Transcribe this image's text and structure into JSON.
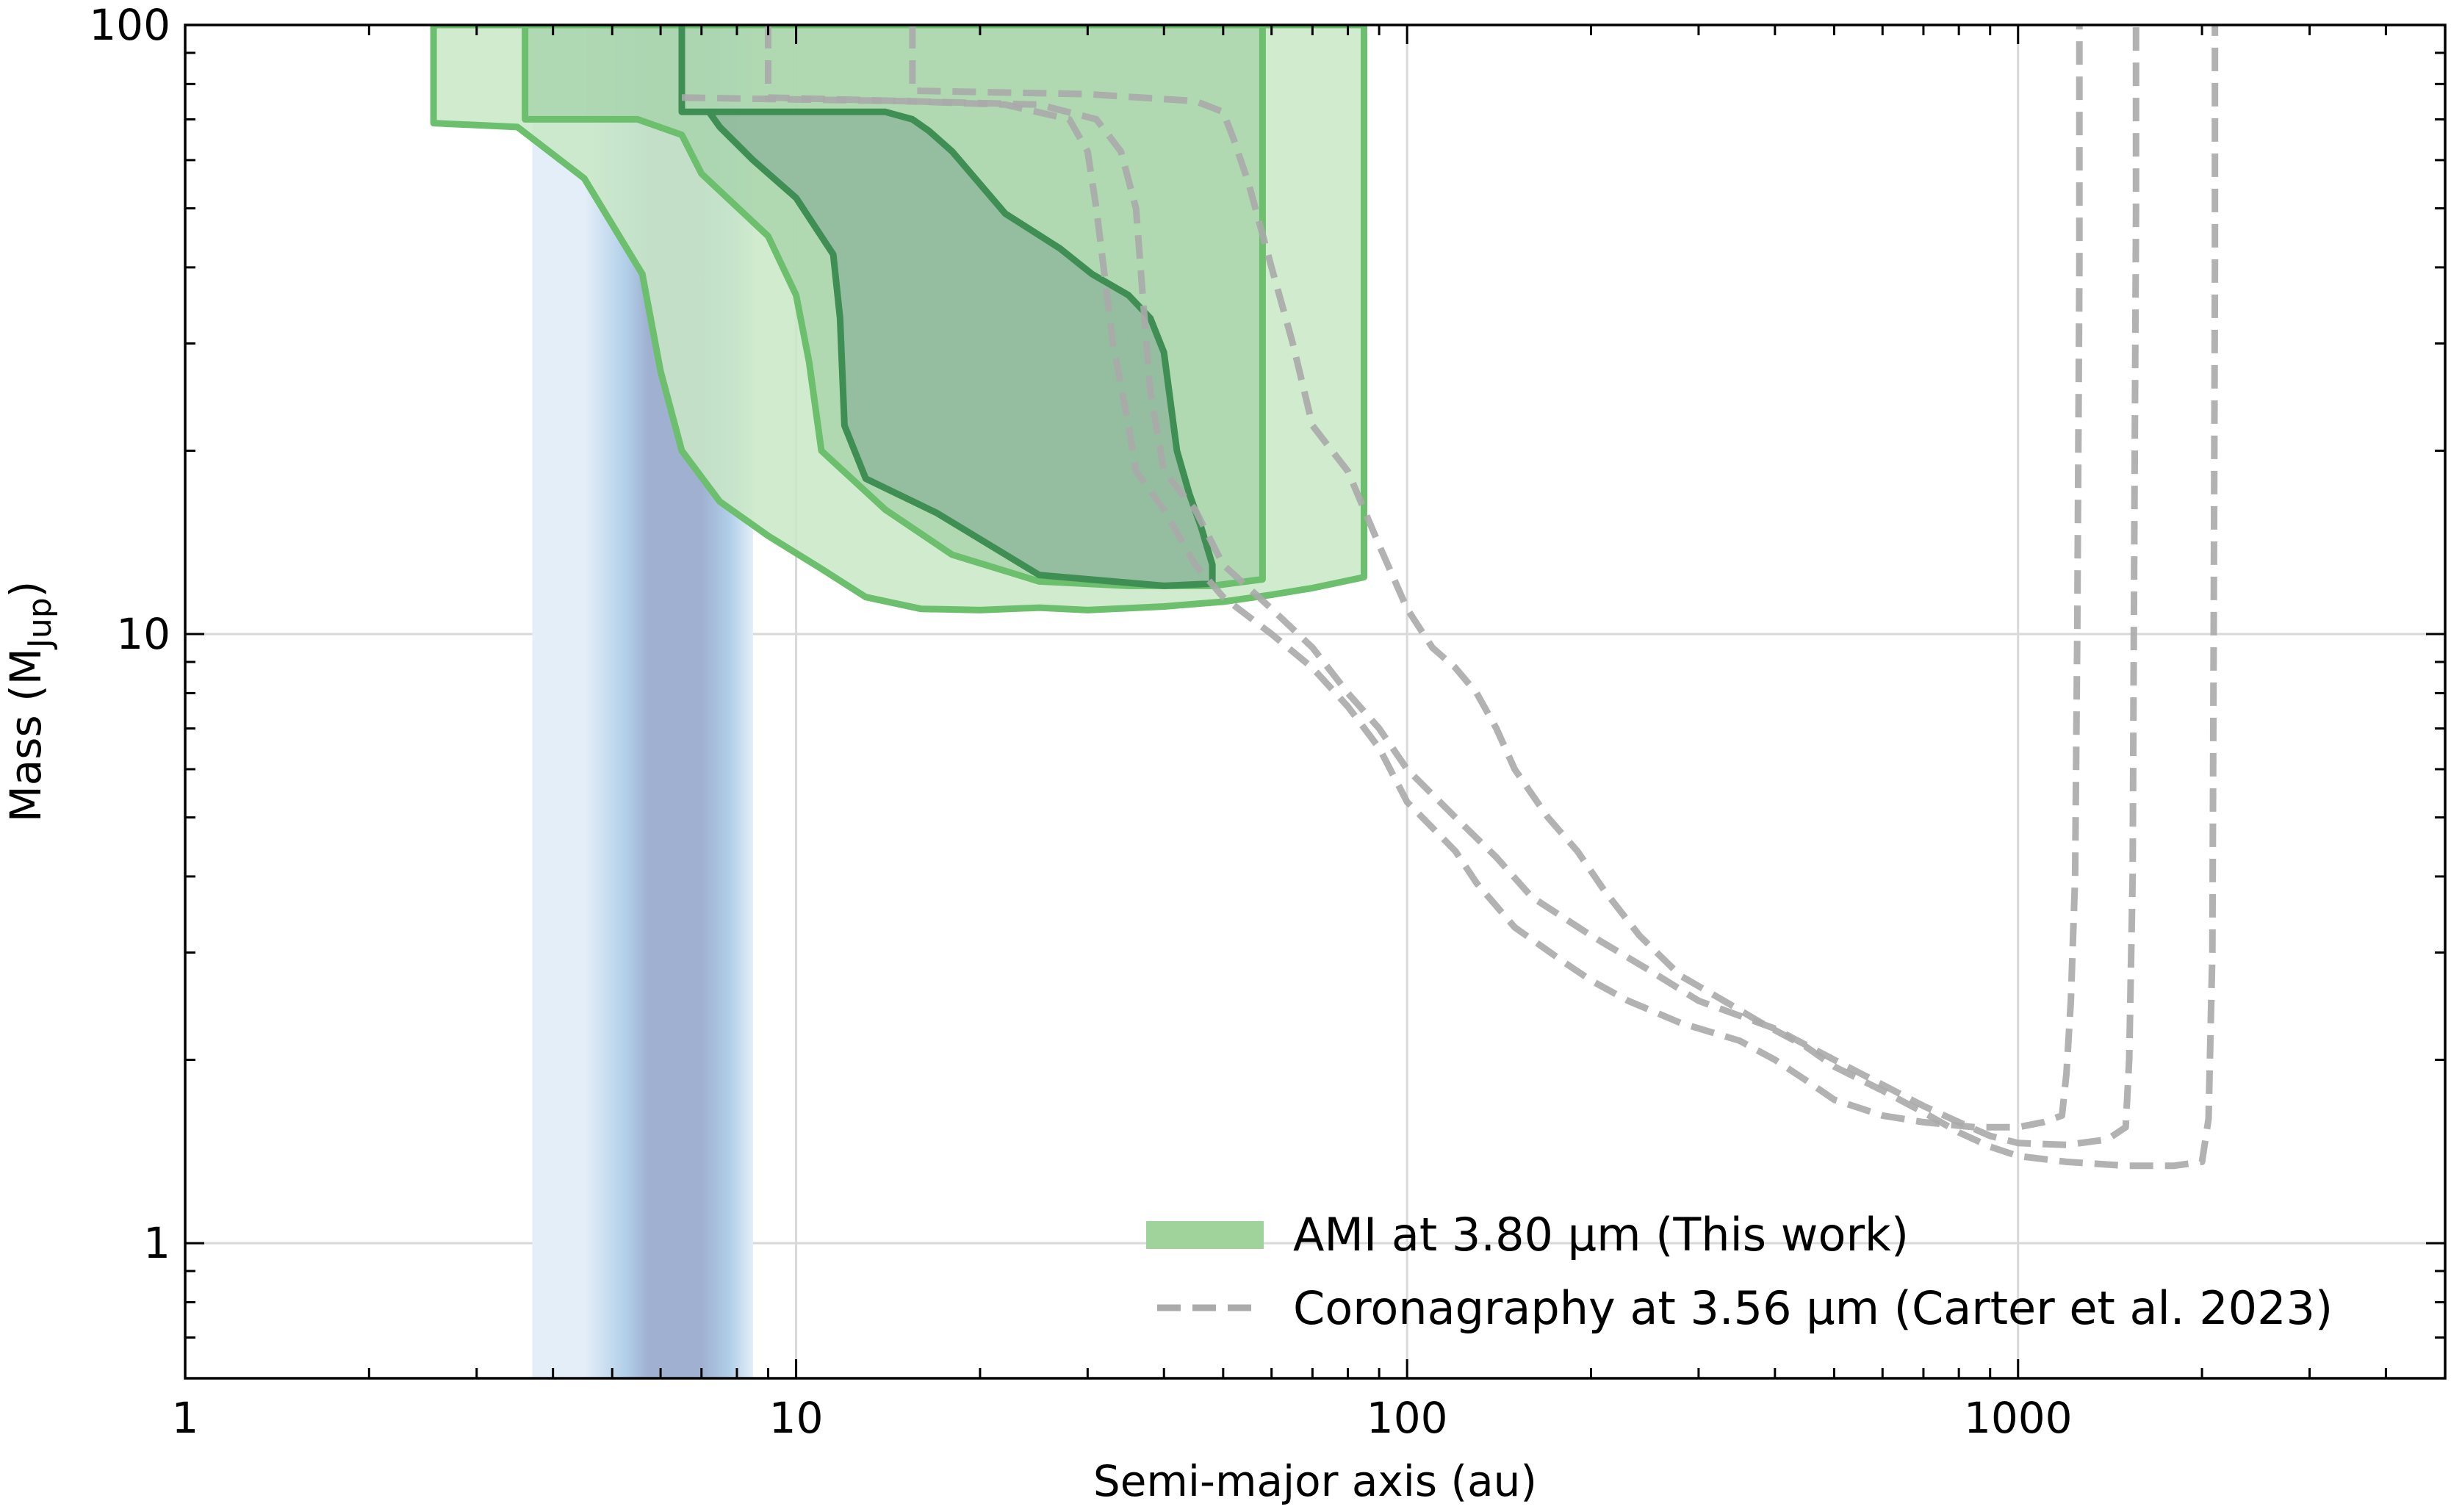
{
  "chart_data": {
    "type": "area",
    "xscale": "log",
    "yscale": "log",
    "xlim": [
      1,
      5000
    ],
    "ylim": [
      0.6,
      100
    ],
    "xlabel": "Semi-major axis (au)",
    "ylabel_main": "Mass (M",
    "ylabel_sub": "Jup",
    "ylabel_end": ")",
    "grid": true,
    "legend_position": "lower-right",
    "x_ticks": [
      {
        "value": 1,
        "label": "1"
      },
      {
        "value": 10,
        "label": "10"
      },
      {
        "value": 100,
        "label": "100"
      },
      {
        "value": 1000,
        "label": "1000"
      }
    ],
    "y_ticks": [
      {
        "value": 1,
        "label": "1"
      },
      {
        "value": 10,
        "label": "10"
      },
      {
        "value": 100,
        "label": "100"
      }
    ],
    "band": {
      "x_range": [
        3.7,
        8.5
      ],
      "peak": [
        5.5,
        7.0
      ],
      "edge_color": "#e4eef8",
      "mid_color": "#b1cfe9",
      "core_color": "#9fb0d0"
    },
    "colors": {
      "ami_outer_fill": "#c9e8c6",
      "ami_mid_fill": "#a3d1a6",
      "ami_inner_fill": "#8cb499",
      "ami_edge": "#6cbf6c",
      "ami_edge_dark": "#3f8f55",
      "corona": "#aaaaaa",
      "grid": "#d9d9d9",
      "legend_patch": "#9fd39b"
    },
    "ami_contours": [
      {
        "level": "outer",
        "points": [
          [
            2.55,
            100
          ],
          [
            2.55,
            69
          ],
          [
            3.5,
            68
          ],
          [
            4.5,
            56
          ],
          [
            5.6,
            39
          ],
          [
            6.0,
            27
          ],
          [
            6.5,
            20
          ],
          [
            7.5,
            16.5
          ],
          [
            9,
            14.5
          ],
          [
            11,
            12.8
          ],
          [
            13,
            11.5
          ],
          [
            16,
            11.0
          ],
          [
            20,
            10.95
          ],
          [
            25,
            11.05
          ],
          [
            30,
            10.95
          ],
          [
            40,
            11.1
          ],
          [
            50,
            11.3
          ],
          [
            60,
            11.6
          ],
          [
            70,
            11.9
          ],
          [
            85,
            12.4
          ],
          [
            85,
            100
          ]
        ]
      },
      {
        "level": "mid",
        "points": [
          [
            3.6,
            100
          ],
          [
            3.6,
            70
          ],
          [
            5.5,
            70
          ],
          [
            6.5,
            66
          ],
          [
            7.0,
            57
          ],
          [
            9.0,
            45
          ],
          [
            10.0,
            36
          ],
          [
            10.5,
            28
          ],
          [
            11.0,
            20
          ],
          [
            14,
            16
          ],
          [
            18,
            13.5
          ],
          [
            25,
            12.2
          ],
          [
            35,
            12.0
          ],
          [
            48,
            12.0
          ],
          [
            58,
            12.3
          ],
          [
            58,
            100
          ]
        ]
      },
      {
        "level": "inner",
        "points": [
          [
            6.5,
            100
          ],
          [
            6.5,
            72
          ],
          [
            14,
            72
          ],
          [
            15.5,
            70
          ],
          [
            16.5,
            67
          ],
          [
            18.0,
            62
          ],
          [
            22.0,
            49
          ],
          [
            27,
            43
          ],
          [
            30.5,
            39
          ],
          [
            35,
            36
          ],
          [
            38,
            33
          ],
          [
            40,
            29
          ],
          [
            42,
            20
          ],
          [
            44,
            17
          ],
          [
            46,
            15
          ],
          [
            48,
            13
          ],
          [
            48,
            12.1
          ],
          [
            40,
            12.0
          ],
          [
            33,
            12.2
          ],
          [
            25,
            12.5
          ],
          [
            17,
            15.8
          ],
          [
            13,
            18
          ],
          [
            12,
            22
          ],
          [
            11.8,
            33
          ],
          [
            11.5,
            42
          ],
          [
            10,
            52
          ],
          [
            8.5,
            60
          ],
          [
            7.5,
            68
          ],
          [
            7.2,
            72
          ],
          [
            6.5,
            72
          ]
        ]
      }
    ],
    "corona_curves": [
      {
        "points": [
          [
            6.5,
            76
          ],
          [
            15,
            75
          ],
          [
            22,
            74
          ],
          [
            28,
            70
          ],
          [
            30,
            62
          ],
          [
            31,
            50
          ],
          [
            33,
            30
          ],
          [
            35,
            22
          ],
          [
            36,
            18.5
          ],
          [
            40,
            16
          ],
          [
            45,
            13
          ],
          [
            50,
            11.5
          ],
          [
            60,
            10
          ],
          [
            70,
            8.8
          ],
          [
            80,
            7.6
          ],
          [
            90,
            6.5
          ],
          [
            100,
            5.3
          ],
          [
            120,
            4.4
          ],
          [
            130,
            3.9
          ],
          [
            150,
            3.3
          ],
          [
            180,
            2.9
          ],
          [
            200,
            2.7
          ],
          [
            230,
            2.5
          ],
          [
            280,
            2.3
          ],
          [
            350,
            2.15
          ],
          [
            400,
            2.0
          ],
          [
            450,
            1.85
          ],
          [
            500,
            1.72
          ],
          [
            600,
            1.62
          ],
          [
            700,
            1.58
          ],
          [
            850,
            1.55
          ],
          [
            1000,
            1.55
          ],
          [
            1100,
            1.58
          ],
          [
            1180,
            1.62
          ],
          [
            1200,
            1.9
          ],
          [
            1220,
            2.5
          ],
          [
            1240,
            4
          ],
          [
            1250,
            10
          ],
          [
            1260,
            40
          ],
          [
            1260,
            100
          ]
        ]
      },
      {
        "points": [
          [
            9.0,
            100
          ],
          [
            9.0,
            76
          ],
          [
            15,
            75
          ],
          [
            25,
            74
          ],
          [
            31,
            70
          ],
          [
            34,
            62
          ],
          [
            36,
            50
          ],
          [
            37,
            35
          ],
          [
            38,
            25
          ],
          [
            40,
            18.5
          ],
          [
            45,
            16
          ],
          [
            50,
            13
          ],
          [
            60,
            11
          ],
          [
            70,
            9.5
          ],
          [
            80,
            8.0
          ],
          [
            90,
            7.0
          ],
          [
            100,
            6.0
          ],
          [
            120,
            5.0
          ],
          [
            140,
            4.3
          ],
          [
            160,
            3.7
          ],
          [
            200,
            3.2
          ],
          [
            250,
            2.8
          ],
          [
            300,
            2.5
          ],
          [
            400,
            2.25
          ],
          [
            500,
            2.0
          ],
          [
            600,
            1.82
          ],
          [
            700,
            1.68
          ],
          [
            800,
            1.58
          ],
          [
            900,
            1.5
          ],
          [
            1000,
            1.46
          ],
          [
            1200,
            1.45
          ],
          [
            1400,
            1.48
          ],
          [
            1500,
            1.55
          ],
          [
            1520,
            2.0
          ],
          [
            1540,
            4
          ],
          [
            1550,
            15
          ],
          [
            1560,
            50
          ],
          [
            1560,
            100
          ]
        ]
      },
      {
        "points": [
          [
            15.5,
            100
          ],
          [
            15.5,
            78
          ],
          [
            30,
            77
          ],
          [
            45,
            75
          ],
          [
            50,
            72
          ],
          [
            52,
            65
          ],
          [
            55,
            55
          ],
          [
            60,
            40
          ],
          [
            65,
            30
          ],
          [
            70,
            22
          ],
          [
            80,
            18.5
          ],
          [
            90,
            14
          ],
          [
            100,
            11
          ],
          [
            110,
            9.5
          ],
          [
            120,
            8.8
          ],
          [
            130,
            8
          ],
          [
            140,
            7
          ],
          [
            150,
            6
          ],
          [
            170,
            5.0
          ],
          [
            190,
            4.4
          ],
          [
            210,
            3.8
          ],
          [
            240,
            3.2
          ],
          [
            280,
            2.75
          ],
          [
            330,
            2.5
          ],
          [
            380,
            2.3
          ],
          [
            450,
            2.1
          ],
          [
            500,
            1.95
          ],
          [
            600,
            1.78
          ],
          [
            700,
            1.64
          ],
          [
            800,
            1.52
          ],
          [
            900,
            1.44
          ],
          [
            1000,
            1.39
          ],
          [
            1200,
            1.36
          ],
          [
            1500,
            1.34
          ],
          [
            1800,
            1.34
          ],
          [
            2000,
            1.36
          ],
          [
            2050,
            1.6
          ],
          [
            2080,
            3
          ],
          [
            2090,
            10
          ],
          [
            2100,
            40
          ],
          [
            2100,
            100
          ]
        ]
      }
    ],
    "legend": [
      {
        "label": "AMI at 3.80 μm (This work)",
        "kind": "patch"
      },
      {
        "label": "Coronagraphy at 3.56 μm (Carter et al. 2023)",
        "kind": "dashed"
      }
    ]
  }
}
